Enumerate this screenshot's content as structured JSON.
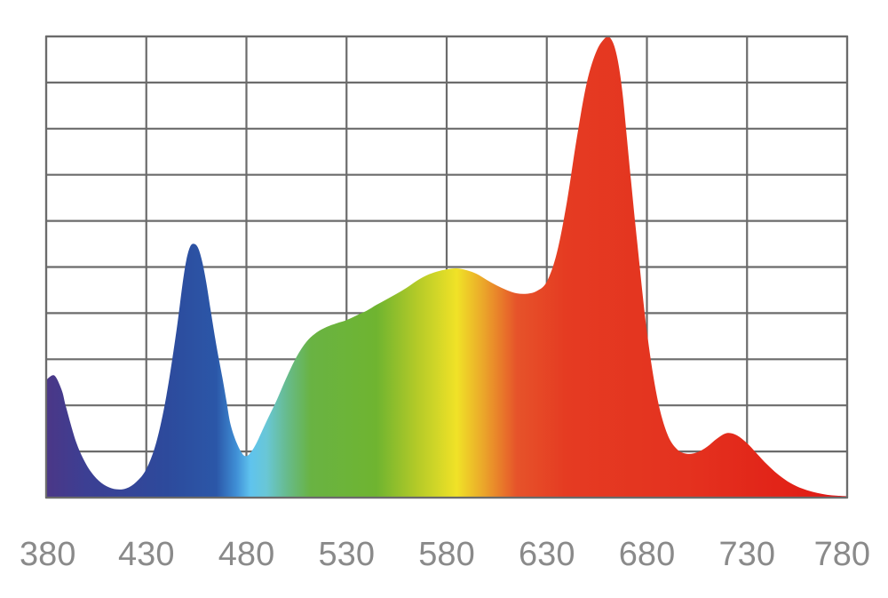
{
  "chart_data": {
    "type": "area",
    "title": "",
    "xlabel": "",
    "ylabel": "",
    "xlim": [
      380,
      780
    ],
    "ylim": [
      0,
      10
    ],
    "grid": true,
    "legend": "none",
    "x_ticks": [
      380,
      430,
      480,
      530,
      580,
      630,
      680,
      730,
      780
    ],
    "x_tick_labels": [
      "380",
      "430",
      "480",
      "530",
      "580",
      "630",
      "680",
      "730",
      "780"
    ],
    "y_gridlines": 10,
    "series": [
      {
        "x": [
          380,
          383,
          385,
          388,
          390,
          395,
          400,
          405,
          410,
          415,
          420,
          425,
          430,
          435,
          440,
          445,
          448,
          450,
          452,
          454,
          456,
          458,
          460,
          462,
          465,
          468,
          470,
          472,
          475,
          478,
          480,
          482,
          485,
          490,
          495,
          500,
          505,
          510,
          515,
          520,
          525,
          530,
          535,
          540,
          545,
          550,
          555,
          560,
          565,
          570,
          575,
          580,
          585,
          590,
          595,
          600,
          605,
          610,
          615,
          620,
          625,
          630,
          635,
          640,
          645,
          650,
          655,
          660,
          662,
          664,
          666,
          668,
          670,
          672,
          675,
          680,
          685,
          690,
          695,
          700,
          705,
          710,
          715,
          720,
          725,
          730,
          735,
          740,
          745,
          750,
          755,
          760,
          765,
          770,
          775,
          780
        ],
        "y": [
          2.55,
          2.65,
          2.6,
          2.3,
          1.95,
          1.2,
          0.72,
          0.42,
          0.25,
          0.18,
          0.2,
          0.34,
          0.62,
          1.2,
          2.2,
          3.6,
          4.6,
          5.15,
          5.45,
          5.5,
          5.4,
          5.1,
          4.65,
          4.1,
          3.3,
          2.6,
          2.1,
          1.6,
          1.2,
          0.95,
          0.9,
          0.97,
          1.18,
          1.65,
          2.1,
          2.6,
          3.05,
          3.38,
          3.58,
          3.7,
          3.78,
          3.85,
          3.95,
          4.05,
          4.18,
          4.3,
          4.42,
          4.55,
          4.7,
          4.82,
          4.9,
          4.95,
          4.97,
          4.93,
          4.85,
          4.72,
          4.6,
          4.5,
          4.43,
          4.42,
          4.48,
          4.68,
          5.3,
          6.4,
          7.8,
          9.0,
          9.7,
          10.0,
          9.95,
          9.75,
          9.35,
          8.7,
          7.8,
          6.9,
          5.6,
          3.6,
          2.2,
          1.4,
          1.05,
          0.95,
          0.98,
          1.1,
          1.28,
          1.4,
          1.35,
          1.18,
          0.95,
          0.72,
          0.52,
          0.36,
          0.24,
          0.16,
          0.1,
          0.06,
          0.04,
          0.03
        ]
      }
    ],
    "colors": {
      "grid": "#6b6b6b",
      "tick_label": "#8a8a8a",
      "spectrum_stops": [
        {
          "nm": 380,
          "color": "#4b3787"
        },
        {
          "nm": 400,
          "color": "#3c3f93"
        },
        {
          "nm": 440,
          "color": "#2d4a9c"
        },
        {
          "nm": 465,
          "color": "#2b57a8"
        },
        {
          "nm": 475,
          "color": "#3f8fd6"
        },
        {
          "nm": 482,
          "color": "#5fc3ee"
        },
        {
          "nm": 490,
          "color": "#69c7d6"
        },
        {
          "nm": 500,
          "color": "#67bb8e"
        },
        {
          "nm": 512,
          "color": "#69b343"
        },
        {
          "nm": 545,
          "color": "#6fb430"
        },
        {
          "nm": 565,
          "color": "#b3ca28"
        },
        {
          "nm": 585,
          "color": "#f0e227"
        },
        {
          "nm": 598,
          "color": "#eba82a"
        },
        {
          "nm": 615,
          "color": "#e6532a"
        },
        {
          "nm": 640,
          "color": "#e53b22"
        },
        {
          "nm": 700,
          "color": "#e4321f"
        },
        {
          "nm": 760,
          "color": "#e11f16"
        },
        {
          "nm": 780,
          "color": "#e0161a"
        }
      ]
    }
  }
}
